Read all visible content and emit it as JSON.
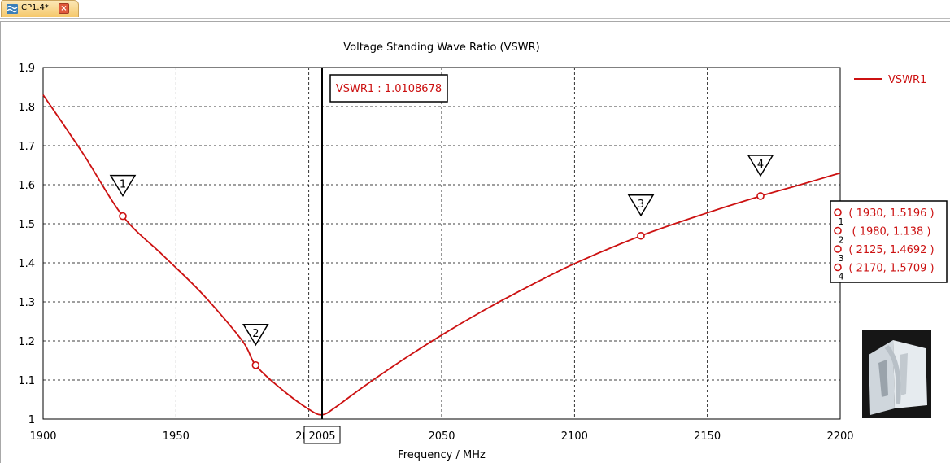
{
  "tab": {
    "label": "CP1.4*",
    "close_glyph": "×",
    "icon": "wave-icon",
    "close_icon": "close-icon"
  },
  "colors": {
    "series": "#cc1111",
    "grid": "#000000",
    "tab_bg": "#f5c86a"
  },
  "chart_data": {
    "type": "line",
    "title": "Voltage Standing Wave Ratio (VSWR)",
    "xlabel": "Frequency / MHz",
    "ylabel": "",
    "xlim": [
      1900,
      2200
    ],
    "ylim": [
      1,
      1.9
    ],
    "x_ticks": [
      "1900",
      "1950",
      "2000",
      "2050",
      "2100",
      "2150",
      "2200"
    ],
    "y_ticks": [
      "1",
      "1.1",
      "1.2",
      "1.3",
      "1.4",
      "1.5",
      "1.6",
      "1.7",
      "1.8",
      "1.9"
    ],
    "grid": true,
    "legend_position": "right",
    "series": [
      {
        "name": "VSWR1",
        "color": "#cc1111",
        "x": [
          1900,
          1915,
          1930,
          1945,
          1960,
          1975,
          1980,
          1990,
          2000,
          2005,
          2010,
          2020,
          2035,
          2050,
          2065,
          2080,
          2100,
          2125,
          2150,
          2170,
          2185,
          2200
        ],
        "y": [
          1.83,
          1.68,
          1.5196,
          1.42,
          1.32,
          1.2,
          1.138,
          1.075,
          1.025,
          1.011,
          1.03,
          1.08,
          1.15,
          1.215,
          1.275,
          1.33,
          1.398,
          1.4692,
          1.528,
          1.5709,
          1.6,
          1.63
        ]
      }
    ],
    "markers": [
      {
        "id": "1",
        "x": 1930,
        "y": 1.5196,
        "label": "( 1930, 1.5196 )"
      },
      {
        "id": "2",
        "x": 1980,
        "y": 1.138,
        "label": "( 1980, 1.138 )"
      },
      {
        "id": "3",
        "x": 2125,
        "y": 1.4692,
        "label": "( 2125, 1.4692 )"
      },
      {
        "id": "4",
        "x": 2170,
        "y": 1.5709,
        "label": "( 2170, 1.5709 )"
      }
    ],
    "cursor": {
      "x": 2005,
      "x_label": "2005",
      "readout": "VSWR1 : 1.0108678"
    }
  }
}
